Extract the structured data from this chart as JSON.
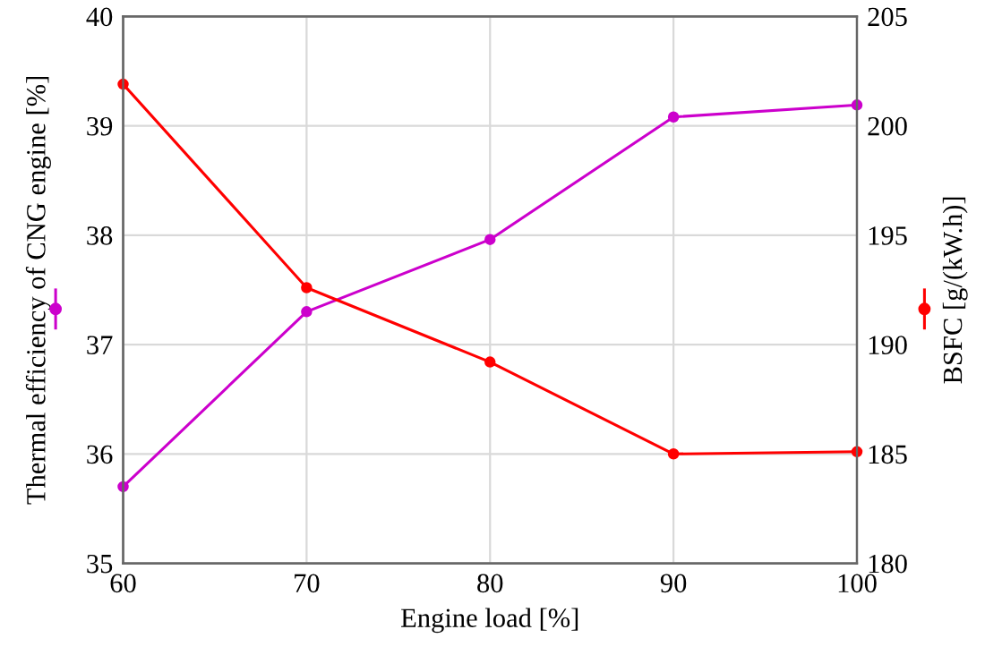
{
  "chart_data": {
    "type": "line",
    "xlabel": "Engine load [%]",
    "ylabel": "Thermal efficiency of CNG engine [%]",
    "y2label": "BSFC [g/(kW.h)]",
    "x": [
      60,
      70,
      80,
      90,
      100
    ],
    "series": [
      {
        "color": "#cc00cc",
        "values": [
          35.7,
          37.3,
          37.96,
          39.08,
          39.19
        ]
      },
      {
        "color": "#ff0000",
        "axis": "y2",
        "values": [
          201.9,
          192.6,
          189.2,
          185.0,
          185.1
        ]
      }
    ],
    "xlim": [
      60,
      100
    ],
    "xticks": [
      60,
      70,
      80,
      90,
      100
    ],
    "ylim": [
      35,
      40
    ],
    "yticks": [
      35,
      36,
      37,
      38,
      39,
      40
    ],
    "y2lim": [
      180,
      205
    ],
    "y2ticks": [
      180,
      185,
      190,
      195,
      200,
      205
    ],
    "grid": true,
    "marker": "circle",
    "line_style": "solid"
  }
}
